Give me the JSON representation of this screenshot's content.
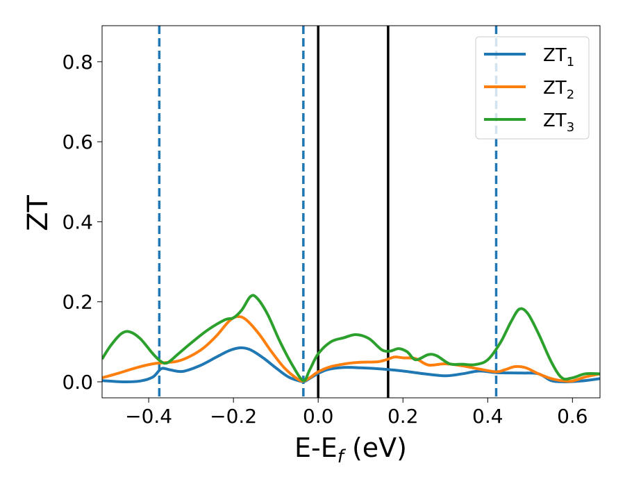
{
  "chart_data": {
    "type": "line",
    "xlabel": {
      "main": "E-E",
      "sub": "f",
      "suffix": " (eV)"
    },
    "ylabel": "ZT",
    "xlim": [
      -0.51,
      0.665
    ],
    "ylim": [
      -0.04,
      0.89
    ],
    "xticks": [
      {
        "value": -0.4,
        "label": "−0.4"
      },
      {
        "value": -0.2,
        "label": "−0.2"
      },
      {
        "value": 0.0,
        "label": "0.0"
      },
      {
        "value": 0.2,
        "label": "0.2"
      },
      {
        "value": 0.4,
        "label": "0.4"
      },
      {
        "value": 0.6,
        "label": "0.6"
      }
    ],
    "yticks": [
      {
        "value": 0.0,
        "label": "0.0"
      },
      {
        "value": 0.2,
        "label": "0.2"
      },
      {
        "value": 0.4,
        "label": "0.4"
      },
      {
        "value": 0.6,
        "label": "0.6"
      },
      {
        "value": 0.8,
        "label": "0.8"
      }
    ],
    "vlines": [
      {
        "x": -0.375,
        "style": "dashed",
        "color": "#1f77b4"
      },
      {
        "x": -0.035,
        "style": "dashed",
        "color": "#1f77b4"
      },
      {
        "x": 0.0,
        "style": "solid",
        "color": "#000000"
      },
      {
        "x": 0.165,
        "style": "solid",
        "color": "#000000"
      },
      {
        "x": 0.42,
        "style": "dashed",
        "color": "#1f77b4"
      }
    ],
    "legend_position": "top-right",
    "series": [
      {
        "name": "ZT",
        "subscript": "1",
        "color": "#1f77b4",
        "points": [
          [
            -0.51,
            0.003
          ],
          [
            -0.46,
            0.0
          ],
          [
            -0.42,
            0.002
          ],
          [
            -0.39,
            0.012
          ],
          [
            -0.37,
            0.033
          ],
          [
            -0.35,
            0.03
          ],
          [
            -0.32,
            0.026
          ],
          [
            -0.28,
            0.04
          ],
          [
            -0.24,
            0.062
          ],
          [
            -0.21,
            0.078
          ],
          [
            -0.185,
            0.085
          ],
          [
            -0.16,
            0.08
          ],
          [
            -0.13,
            0.06
          ],
          [
            -0.1,
            0.035
          ],
          [
            -0.07,
            0.012
          ],
          [
            -0.04,
            0.001
          ],
          [
            -0.03,
            0.002
          ],
          [
            -0.01,
            0.015
          ],
          [
            0.02,
            0.03
          ],
          [
            0.06,
            0.036
          ],
          [
            0.1,
            0.035
          ],
          [
            0.15,
            0.032
          ],
          [
            0.2,
            0.027
          ],
          [
            0.25,
            0.02
          ],
          [
            0.3,
            0.015
          ],
          [
            0.34,
            0.02
          ],
          [
            0.38,
            0.027
          ],
          [
            0.42,
            0.023
          ],
          [
            0.48,
            0.022
          ],
          [
            0.52,
            0.02
          ],
          [
            0.55,
            0.003
          ],
          [
            0.58,
            0.0
          ],
          [
            0.62,
            0.002
          ],
          [
            0.665,
            0.008
          ]
        ]
      },
      {
        "name": "ZT",
        "subscript": "2",
        "color": "#ff7f0e",
        "points": [
          [
            -0.51,
            0.01
          ],
          [
            -0.47,
            0.022
          ],
          [
            -0.43,
            0.035
          ],
          [
            -0.39,
            0.045
          ],
          [
            -0.36,
            0.048
          ],
          [
            -0.33,
            0.052
          ],
          [
            -0.3,
            0.065
          ],
          [
            -0.27,
            0.085
          ],
          [
            -0.24,
            0.115
          ],
          [
            -0.21,
            0.152
          ],
          [
            -0.19,
            0.163
          ],
          [
            -0.17,
            0.155
          ],
          [
            -0.14,
            0.12
          ],
          [
            -0.11,
            0.075
          ],
          [
            -0.08,
            0.035
          ],
          [
            -0.05,
            0.008
          ],
          [
            -0.035,
            0.002
          ],
          [
            -0.02,
            0.01
          ],
          [
            0.0,
            0.025
          ],
          [
            0.03,
            0.038
          ],
          [
            0.07,
            0.046
          ],
          [
            0.1,
            0.049
          ],
          [
            0.14,
            0.05
          ],
          [
            0.16,
            0.055
          ],
          [
            0.18,
            0.062
          ],
          [
            0.2,
            0.06
          ],
          [
            0.23,
            0.058
          ],
          [
            0.26,
            0.042
          ],
          [
            0.3,
            0.045
          ],
          [
            0.34,
            0.04
          ],
          [
            0.38,
            0.032
          ],
          [
            0.42,
            0.025
          ],
          [
            0.44,
            0.03
          ],
          [
            0.465,
            0.038
          ],
          [
            0.49,
            0.035
          ],
          [
            0.52,
            0.02
          ],
          [
            0.55,
            0.008
          ],
          [
            0.58,
            0.002
          ],
          [
            0.6,
            0.002
          ],
          [
            0.63,
            0.012
          ],
          [
            0.665,
            0.02
          ]
        ]
      },
      {
        "name": "ZT",
        "subscript": "3",
        "color": "#2ca02c",
        "points": [
          [
            -0.51,
            0.057
          ],
          [
            -0.49,
            0.09
          ],
          [
            -0.465,
            0.12
          ],
          [
            -0.445,
            0.125
          ],
          [
            -0.42,
            0.108
          ],
          [
            -0.39,
            0.07
          ],
          [
            -0.37,
            0.05
          ],
          [
            -0.355,
            0.048
          ],
          [
            -0.33,
            0.07
          ],
          [
            -0.3,
            0.097
          ],
          [
            -0.26,
            0.13
          ],
          [
            -0.22,
            0.155
          ],
          [
            -0.2,
            0.16
          ],
          [
            -0.18,
            0.18
          ],
          [
            -0.16,
            0.213
          ],
          [
            -0.145,
            0.21
          ],
          [
            -0.12,
            0.17
          ],
          [
            -0.09,
            0.1
          ],
          [
            -0.06,
            0.04
          ],
          [
            -0.035,
            0.003
          ],
          [
            -0.02,
            0.03
          ],
          [
            0.0,
            0.07
          ],
          [
            0.03,
            0.1
          ],
          [
            0.06,
            0.11
          ],
          [
            0.09,
            0.118
          ],
          [
            0.12,
            0.108
          ],
          [
            0.15,
            0.08
          ],
          [
            0.17,
            0.077
          ],
          [
            0.19,
            0.083
          ],
          [
            0.21,
            0.075
          ],
          [
            0.23,
            0.055
          ],
          [
            0.26,
            0.068
          ],
          [
            0.28,
            0.065
          ],
          [
            0.31,
            0.045
          ],
          [
            0.34,
            0.044
          ],
          [
            0.37,
            0.043
          ],
          [
            0.4,
            0.055
          ],
          [
            0.43,
            0.098
          ],
          [
            0.455,
            0.15
          ],
          [
            0.475,
            0.182
          ],
          [
            0.495,
            0.17
          ],
          [
            0.52,
            0.12
          ],
          [
            0.55,
            0.05
          ],
          [
            0.575,
            0.01
          ],
          [
            0.6,
            0.01
          ],
          [
            0.63,
            0.02
          ],
          [
            0.665,
            0.02
          ]
        ]
      }
    ]
  }
}
